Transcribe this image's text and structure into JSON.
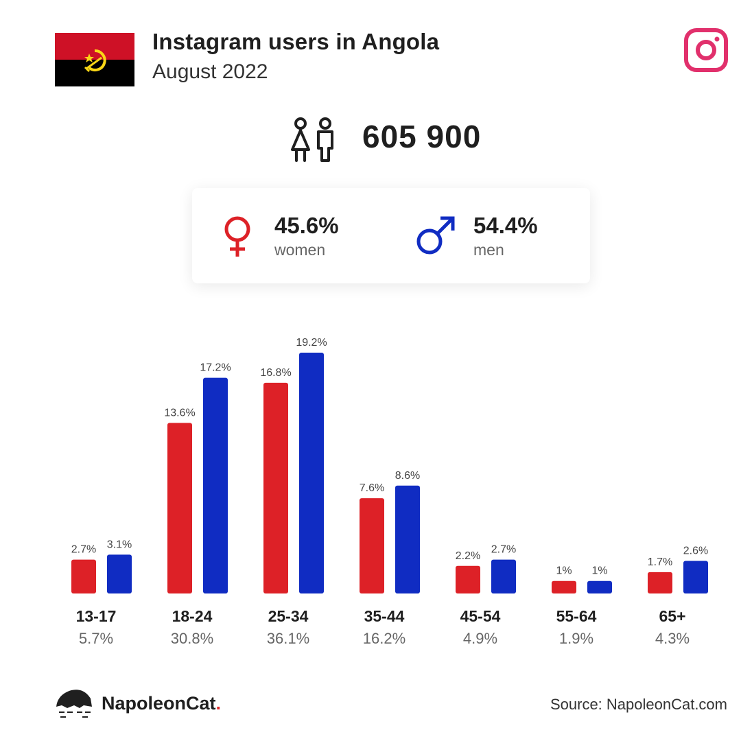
{
  "header": {
    "title": "Instagram users in Angola",
    "subtitle": "August 2022"
  },
  "total_users": "605 900",
  "gender": {
    "women_pct": "45.6%",
    "women_label": "women",
    "men_pct": "54.4%",
    "men_label": "men"
  },
  "colors": {
    "women": "#dd2127",
    "men": "#102cc2",
    "instagram": "#e1306c"
  },
  "chart_data": {
    "type": "bar",
    "categories": [
      "13-17",
      "18-24",
      "25-34",
      "35-44",
      "45-54",
      "55-64",
      "65+"
    ],
    "category_totals": [
      "5.7%",
      "30.8%",
      "36.1%",
      "16.2%",
      "4.9%",
      "1.9%",
      "4.3%"
    ],
    "series": [
      {
        "values": [
          2.7,
          13.6,
          16.8,
          7.6,
          2.2,
          1,
          1.7
        ],
        "labels": [
          "2.7%",
          "13.6%",
          "16.8%",
          "7.6%",
          "2.2%",
          "1%",
          "1.7%"
        ],
        "color": "#dd2127"
      },
      {
        "values": [
          3.1,
          17.2,
          19.2,
          8.6,
          2.7,
          1,
          2.6
        ],
        "labels": [
          "3.1%",
          "17.2%",
          "19.2%",
          "8.6%",
          "2.7%",
          "1%",
          "2.6%"
        ],
        "color": "#102cc2"
      }
    ],
    "ylim": [
      0,
      19.2
    ],
    "grid": false
  },
  "footer": {
    "brand_name": "NapoleonCat",
    "brand_dot": ".",
    "source": "Source: NapoleonCat.com"
  },
  "icons": [
    "angola-flag",
    "instagram-icon",
    "users-icon",
    "female-icon",
    "male-icon",
    "napoleoncat-logo"
  ]
}
